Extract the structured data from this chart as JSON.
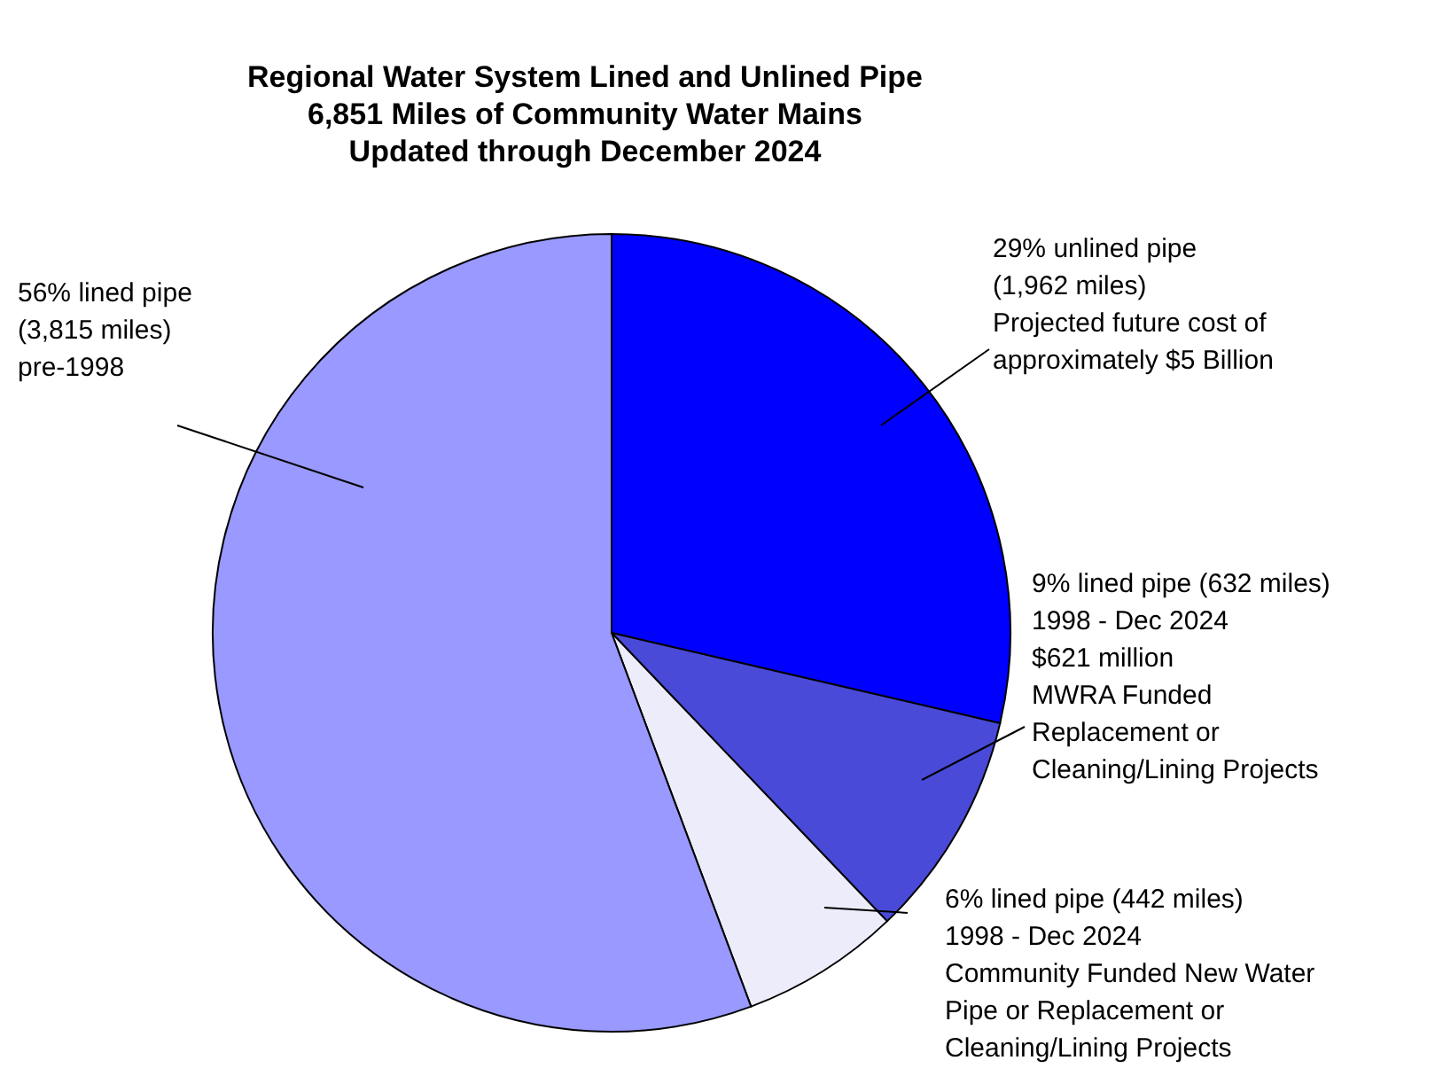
{
  "chart_data": {
    "type": "pie",
    "title": "Regional Water System Lined and Unlined Pipe\n6,851 Miles of Community Water Mains\nUpdated through December 2024",
    "categories": [
      "29% unlined pipe\n(1,962 miles)\nProjected future cost of\napproximately $5 Billion",
      "9% lined pipe (632 miles)\n1998 - Dec 2024\n$621 million\nMWRA Funded\nReplacement or\nCleaning/Lining Projects",
      "6% lined pipe (442 miles)\n1998 - Dec 2024\nCommunity Funded New Water\nPipe or Replacement or\nCleaning/Lining Projects",
      "56% lined pipe\n(3,815 miles)\npre-1998"
    ],
    "values": [
      1962,
      632,
      442,
      3815
    ],
    "colors": [
      "#0000ff",
      "#4a4ad8",
      "#ececfa",
      "#9999ff"
    ]
  }
}
